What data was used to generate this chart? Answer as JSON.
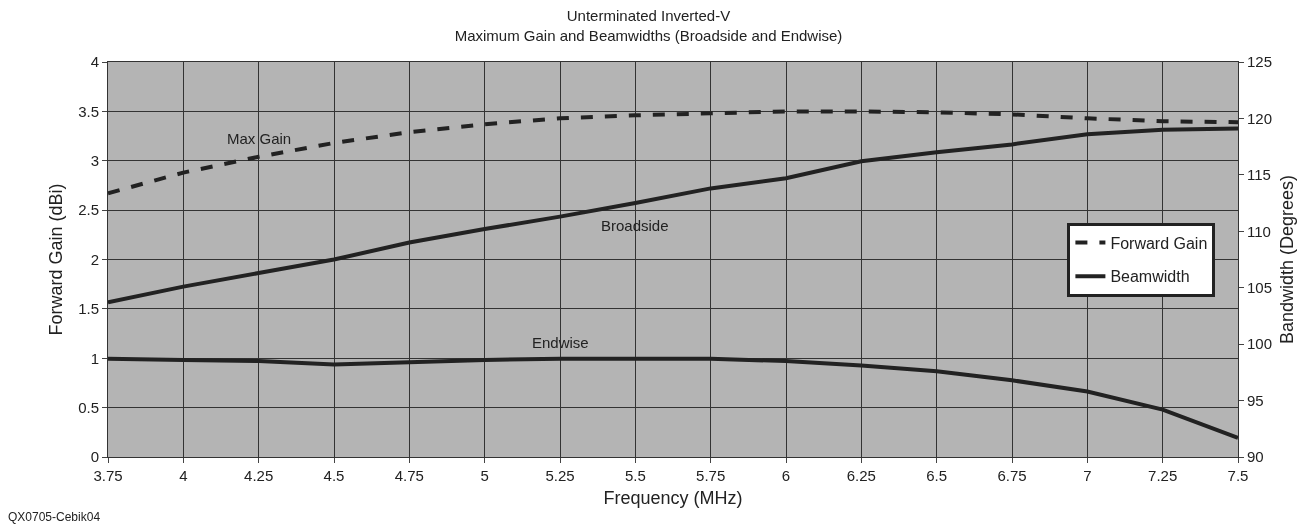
{
  "chart_data": {
    "type": "line",
    "title": "Unterminated Inverted-V\nMaximum Gain and Beamwidths (Broadside and Endwise)",
    "xlabel": "Frequency (MHz)",
    "ylabel": "Forward Gain (dBi)",
    "y2label": "Bandwidth (Degrees)",
    "x": [
      3.75,
      4,
      4.25,
      4.5,
      4.75,
      5,
      5.25,
      5.5,
      5.75,
      6,
      6.25,
      6.5,
      6.75,
      7,
      7.25,
      7.5
    ],
    "series": [
      {
        "name": "Forward Gain",
        "color": "#222222",
        "line_style": "dashed",
        "values": [
          2.67,
          2.88,
          3.04,
          3.18,
          3.29,
          3.37,
          3.43,
          3.46,
          3.48,
          3.5,
          3.5,
          3.49,
          3.47,
          3.43,
          3.4,
          3.39
        ]
      },
      {
        "name": "Beamwidth",
        "color": "#222222",
        "line_style": "solid",
        "axis": "y2",
        "values": [
          103.7,
          105.1,
          106.3,
          107.5,
          109,
          110.2,
          111.3,
          112.5,
          113.8,
          114.7,
          116.2,
          117,
          117.7,
          118.6,
          119,
          119.1
        ]
      },
      {
        "color": "#222222",
        "line_style": "solid",
        "axis": "y2",
        "values": [
          98.7,
          98.6,
          98.5,
          98.2,
          98.4,
          98.6,
          98.7,
          98.7,
          98.7,
          98.5,
          98.1,
          97.6,
          96.8,
          95.8,
          94.2,
          91.7
        ]
      }
    ],
    "annotations": [
      "Max Gain",
      "Broadside",
      "Endwise",
      "QX0705-Cebik04"
    ],
    "xlim": [
      3.75,
      7.5
    ],
    "xticks": [
      3.75,
      4,
      4.25,
      4.5,
      4.75,
      5,
      5.25,
      5.5,
      5.75,
      6,
      6.25,
      6.5,
      6.75,
      7,
      7.25,
      7.5
    ],
    "ylim": [
      0,
      4
    ],
    "yticks": [
      0,
      0.5,
      1,
      1.5,
      2,
      2.5,
      3,
      3.5,
      4
    ],
    "y2lim": [
      90,
      125
    ],
    "y2ticks": [
      90,
      95,
      100,
      105,
      110,
      115,
      120,
      125
    ],
    "grid": true,
    "legend": "right",
    "marker": "none"
  }
}
